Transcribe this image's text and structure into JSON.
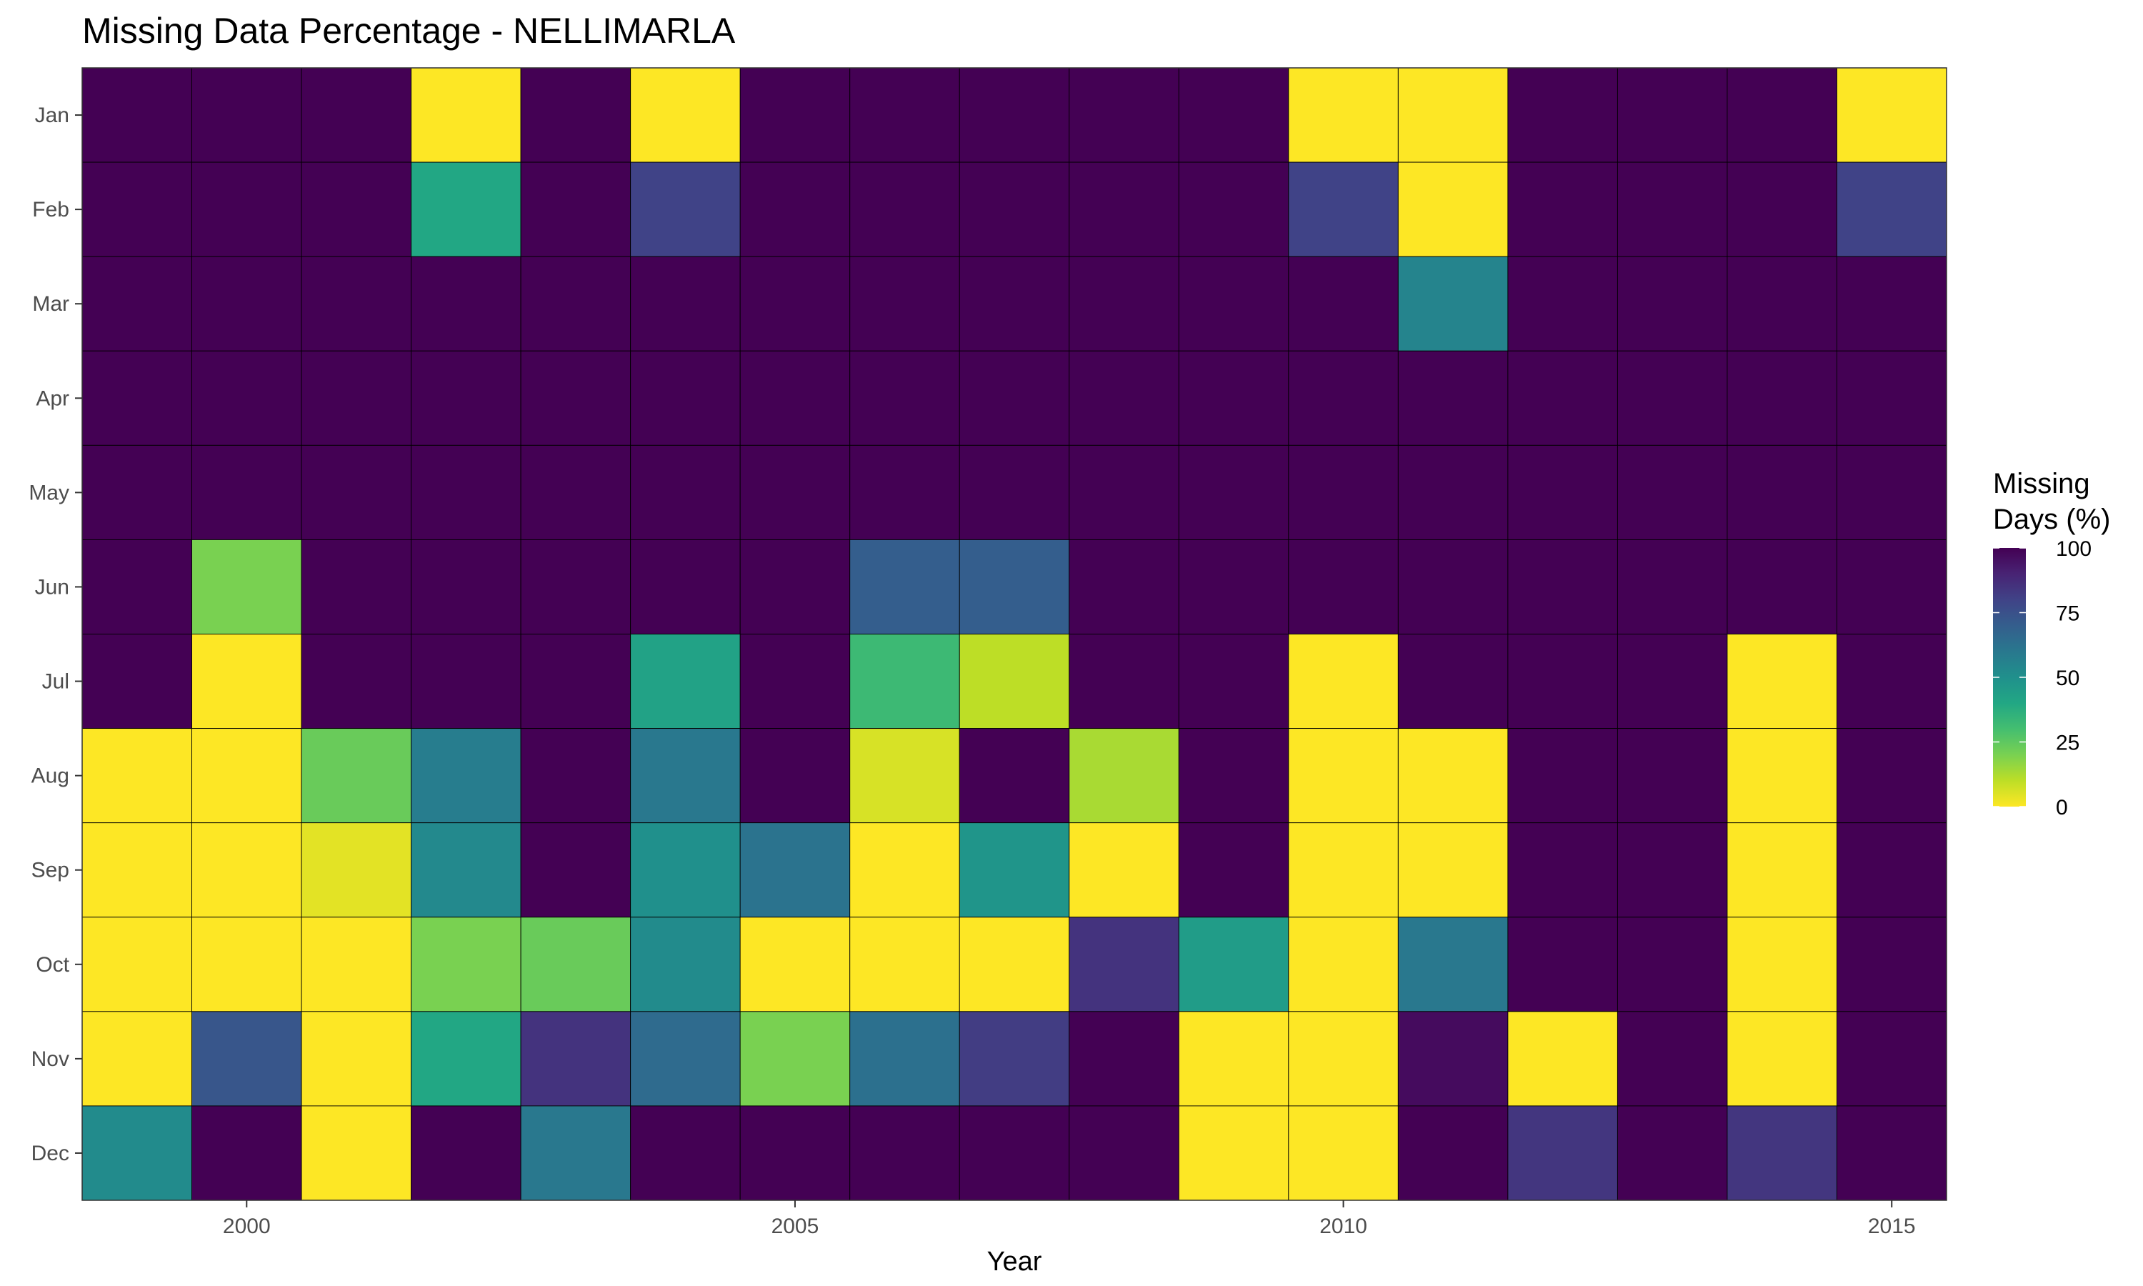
{
  "chart_data": {
    "type": "heatmap",
    "title": "Missing Data Percentage - NELLIMARLA",
    "xlabel": "Year",
    "ylabel": "",
    "x": [
      1999,
      2000,
      2001,
      2002,
      2003,
      2004,
      2005,
      2006,
      2007,
      2008,
      2009,
      2010,
      2011,
      2012,
      2013,
      2014,
      2015
    ],
    "x_ticks": [
      2000,
      2005,
      2010,
      2015
    ],
    "y": [
      "Jan",
      "Feb",
      "Mar",
      "Apr",
      "May",
      "Jun",
      "Jul",
      "Aug",
      "Sep",
      "Oct",
      "Nov",
      "Dec"
    ],
    "values": [
      [
        100,
        100,
        100,
        0,
        100,
        0,
        100,
        100,
        100,
        100,
        100,
        0,
        0,
        100,
        100,
        100,
        0
      ],
      [
        100,
        100,
        100,
        40,
        100,
        80,
        100,
        100,
        100,
        100,
        100,
        80,
        0,
        100,
        100,
        100,
        80
      ],
      [
        100,
        100,
        100,
        100,
        100,
        100,
        100,
        100,
        100,
        100,
        100,
        100,
        55,
        100,
        100,
        100,
        100
      ],
      [
        100,
        100,
        100,
        100,
        100,
        100,
        100,
        100,
        100,
        100,
        100,
        100,
        100,
        100,
        100,
        100,
        100
      ],
      [
        100,
        100,
        100,
        100,
        100,
        100,
        100,
        100,
        100,
        100,
        100,
        100,
        100,
        100,
        100,
        100,
        100
      ],
      [
        100,
        20,
        100,
        100,
        100,
        100,
        100,
        70,
        70,
        100,
        100,
        100,
        100,
        100,
        100,
        100,
        100
      ],
      [
        100,
        0,
        100,
        100,
        100,
        42,
        100,
        32,
        10,
        100,
        100,
        0,
        100,
        100,
        100,
        0,
        100
      ],
      [
        0,
        0,
        23,
        58,
        100,
        60,
        100,
        6,
        100,
        13,
        100,
        0,
        0,
        100,
        100,
        0,
        100
      ],
      [
        0,
        0,
        4,
        53,
        100,
        50,
        62,
        0,
        48,
        0,
        100,
        0,
        0,
        100,
        100,
        0,
        100
      ],
      [
        0,
        0,
        0,
        20,
        23,
        52,
        0,
        0,
        0,
        85,
        45,
        0,
        60,
        100,
        100,
        0,
        100
      ],
      [
        0,
        73,
        0,
        40,
        85,
        65,
        20,
        63,
        82,
        100,
        0,
        0,
        97,
        0,
        100,
        0,
        100
      ],
      [
        52,
        100,
        0,
        100,
        60,
        100,
        100,
        100,
        100,
        100,
        0,
        0,
        100,
        84,
        100,
        84,
        100
      ]
    ],
    "zlim": [
      0,
      100
    ],
    "legend": {
      "title_line1": "Missing",
      "title_line2": "Days (%)",
      "ticks": [
        0,
        25,
        50,
        75,
        100
      ],
      "placement": "right"
    },
    "colormap": "viridis-reversed",
    "grid": false
  }
}
